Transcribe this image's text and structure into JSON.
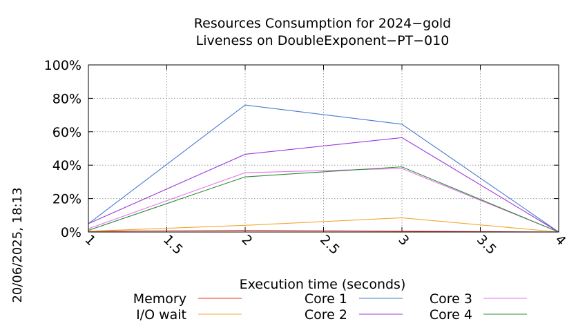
{
  "chart_data": {
    "type": "line",
    "title": "Resources Consumption for 2024−gold",
    "subtitle": "Liveness on DoubleExponent−PT−010",
    "xlabel": "Execution time (seconds)",
    "ylabel": "",
    "timestamp": "20/06/2025, 18:13",
    "xlim": [
      1,
      4
    ],
    "ylim": [
      0,
      100
    ],
    "x_ticks": [
      1,
      1.5,
      2,
      2.5,
      3,
      3.5,
      4
    ],
    "x_tick_labels": [
      "1",
      "1.5",
      "2",
      "2.5",
      "3",
      "3.5",
      "4"
    ],
    "y_ticks": [
      0,
      20,
      40,
      60,
      80,
      100
    ],
    "y_tick_labels": [
      "0%",
      "20%",
      "40%",
      "60%",
      "80%",
      "100%"
    ],
    "grid": true,
    "legend_position": "bottom",
    "x": [
      1,
      2,
      3,
      4
    ],
    "series": [
      {
        "name": "Memory",
        "color": "#e8332a",
        "values": [
          0.5,
          1,
          0.5,
          0
        ]
      },
      {
        "name": "I/O wait",
        "color": "#f0a830",
        "values": [
          0.5,
          4,
          8.5,
          0
        ]
      },
      {
        "name": "Core 1",
        "color": "#4a78d0",
        "values": [
          5,
          76,
          64.5,
          0
        ]
      },
      {
        "name": "Core 2",
        "color": "#9a3adc",
        "values": [
          5,
          46.5,
          56.5,
          0
        ]
      },
      {
        "name": "Core 3",
        "color": "#e872f0",
        "values": [
          2,
          35.5,
          38,
          0
        ]
      },
      {
        "name": "Core 4",
        "color": "#2e8b3a",
        "values": [
          1,
          33,
          39,
          0
        ]
      }
    ]
  }
}
